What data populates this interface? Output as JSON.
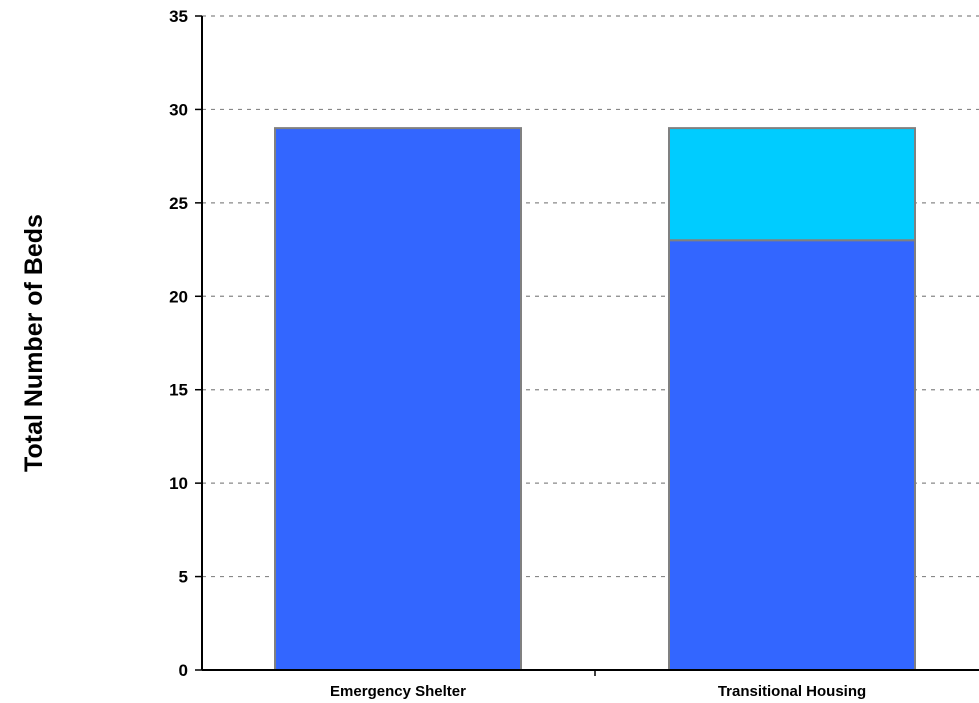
{
  "chart_data": {
    "type": "bar",
    "stacked": true,
    "categories": [
      "Emergency Shelter",
      "Transitional Housing"
    ],
    "series": [
      {
        "color": "#3366FF",
        "values": [
          29,
          23
        ]
      },
      {
        "color": "#00CCFF",
        "values": [
          0,
          6
        ]
      }
    ],
    "title": "",
    "xlabel": "",
    "ylabel": "Total Number of Beds",
    "ylim": [
      0,
      35
    ],
    "yticks": [
      0,
      5,
      10,
      15,
      20,
      25,
      30,
      35
    ],
    "grid": true,
    "grid_style": "dashed",
    "legend": "none",
    "bar_outline_color": "#808080",
    "grid_color": "#888888"
  }
}
